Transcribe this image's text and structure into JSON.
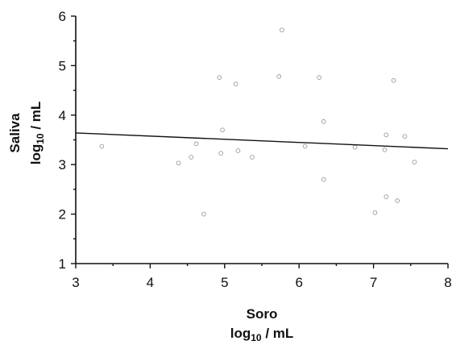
{
  "chart_data": {
    "type": "scatter",
    "x_label_line1": "Soro",
    "x_label_line2_prefix": "log",
    "x_label_line2_sub": "10",
    "x_label_line2_suffix": " / mL",
    "y_label_line1": "Saliva",
    "y_label_line2_prefix": "log",
    "y_label_line2_sub": "10",
    "y_label_line2_suffix": " / mL",
    "xlim": [
      3,
      8
    ],
    "ylim": [
      1,
      6
    ],
    "x_ticks": [
      "3",
      "4",
      "5",
      "6",
      "7",
      "8"
    ],
    "y_ticks": [
      "1",
      "2",
      "3",
      "4",
      "5",
      "6"
    ],
    "grid": false,
    "trend_line": {
      "x": [
        3,
        8
      ],
      "y": [
        3.64,
        3.32
      ]
    },
    "points": [
      {
        "x": 3.35,
        "y": 3.37
      },
      {
        "x": 4.38,
        "y": 3.03
      },
      {
        "x": 4.55,
        "y": 3.15
      },
      {
        "x": 4.62,
        "y": 3.42
      },
      {
        "x": 4.72,
        "y": 2.0
      },
      {
        "x": 4.93,
        "y": 4.76
      },
      {
        "x": 4.95,
        "y": 3.23
      },
      {
        "x": 4.97,
        "y": 3.7
      },
      {
        "x": 5.15,
        "y": 4.63
      },
      {
        "x": 5.18,
        "y": 3.28
      },
      {
        "x": 5.37,
        "y": 3.15
      },
      {
        "x": 5.77,
        "y": 5.72
      },
      {
        "x": 5.73,
        "y": 4.78
      },
      {
        "x": 6.08,
        "y": 3.37
      },
      {
        "x": 6.27,
        "y": 4.76
      },
      {
        "x": 6.33,
        "y": 3.87
      },
      {
        "x": 6.33,
        "y": 2.7
      },
      {
        "x": 6.75,
        "y": 3.35
      },
      {
        "x": 7.02,
        "y": 2.03
      },
      {
        "x": 7.15,
        "y": 3.3
      },
      {
        "x": 7.17,
        "y": 3.6
      },
      {
        "x": 7.17,
        "y": 2.35
      },
      {
        "x": 7.27,
        "y": 4.7
      },
      {
        "x": 7.32,
        "y": 2.27
      },
      {
        "x": 7.42,
        "y": 3.57
      },
      {
        "x": 7.55,
        "y": 3.05
      }
    ]
  }
}
